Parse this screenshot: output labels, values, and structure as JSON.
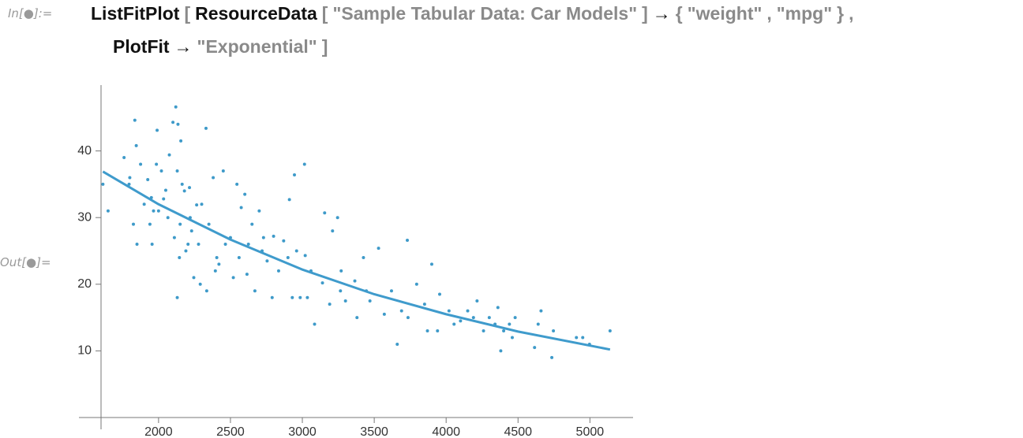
{
  "input": {
    "prompt": "In[●]:=",
    "tokens": [
      "ListFitPlot",
      "[",
      "ResourceData",
      "[",
      "\"Sample Tabular Data: Car Models\"",
      "]",
      "→",
      "{",
      "\"weight\"",
      ",",
      "\"mpg\"",
      "}",
      ",",
      "PlotFit",
      "→",
      "\"Exponential\"",
      "]"
    ]
  },
  "output": {
    "prompt": "Out[●]="
  },
  "chart_data": {
    "type": "scatter",
    "color": "#3e9ac9",
    "xlim": [
      1600,
      5300
    ],
    "ylim": [
      0,
      50
    ],
    "xticks": [
      2000,
      2500,
      3000,
      3500,
      4000,
      4500,
      5000
    ],
    "yticks": [
      10,
      20,
      30,
      40
    ],
    "x": [
      1613,
      1649,
      1760,
      1795,
      1800,
      1825,
      1835,
      1845,
      1850,
      1875,
      1900,
      1925,
      1940,
      1950,
      1955,
      1965,
      1985,
      1990,
      2000,
      2020,
      2035,
      2050,
      2065,
      2075,
      2100,
      2110,
      2120,
      2130,
      2130,
      2135,
      2145,
      2150,
      2155,
      2164,
      2180,
      2190,
      2205,
      2215,
      2220,
      2230,
      2245,
      2265,
      2278,
      2290,
      2300,
      2330,
      2335,
      2350,
      2380,
      2395,
      2405,
      2420,
      2450,
      2465,
      2500,
      2520,
      2545,
      2560,
      2575,
      2600,
      2615,
      2625,
      2650,
      2670,
      2700,
      2720,
      2730,
      2755,
      2790,
      2800,
      2835,
      2870,
      2900,
      2910,
      2930,
      2945,
      2960,
      2985,
      3015,
      3020,
      3035,
      3060,
      3085,
      3140,
      3155,
      3190,
      3210,
      3245,
      3265,
      3270,
      3300,
      3365,
      3380,
      3425,
      3445,
      3470,
      3530,
      3570,
      3620,
      3660,
      3690,
      3730,
      3735,
      3795,
      3850,
      3870,
      3900,
      3940,
      3955,
      4020,
      4055,
      4100,
      4150,
      4190,
      4215,
      4260,
      4300,
      4340,
      4360,
      4380,
      4400,
      4440,
      4460,
      4480,
      4615,
      4640,
      4660,
      4735,
      4746,
      4906,
      4950,
      4997,
      5140
    ],
    "values": [
      35,
      31,
      39,
      35,
      36,
      29,
      44.6,
      40.8,
      26,
      38,
      32,
      35.7,
      29,
      33,
      26,
      31,
      38,
      43.1,
      31,
      37,
      32.8,
      34.1,
      30,
      39.4,
      44.3,
      27,
      46.6,
      18,
      37,
      44,
      24,
      29,
      41.5,
      35,
      34,
      25,
      26,
      34.5,
      30,
      28,
      21,
      31.9,
      26,
      20,
      32,
      43.4,
      19,
      29,
      36,
      22,
      24,
      23,
      37,
      26,
      27,
      21,
      35,
      24,
      31.5,
      33.5,
      21.5,
      26,
      29,
      19,
      31,
      25,
      27,
      23.5,
      18,
      27.2,
      22,
      26.5,
      24,
      32.7,
      18,
      36.4,
      25,
      18,
      38,
      24.3,
      18,
      22,
      14,
      20.2,
      30.7,
      17,
      28,
      30,
      19,
      22,
      17.5,
      20.5,
      15,
      24,
      19,
      17.5,
      25.4,
      15.5,
      19,
      11,
      16,
      26.6,
      15,
      20,
      17,
      13,
      23,
      13,
      18.5,
      16,
      14,
      14.5,
      16,
      15,
      17.5,
      13,
      15,
      14,
      16.5,
      10,
      13,
      14,
      12,
      15,
      10.5,
      14,
      16,
      9,
      13,
      12,
      12,
      11,
      13
    ],
    "fit": {
      "color": "#3f9bcc",
      "x": [
        1613,
        2000,
        2500,
        3000,
        3500,
        4000,
        4500,
        5140
      ],
      "values": [
        36.9,
        32.0,
        26.7,
        22.2,
        18.5,
        15.5,
        12.9,
        10.2
      ]
    }
  }
}
